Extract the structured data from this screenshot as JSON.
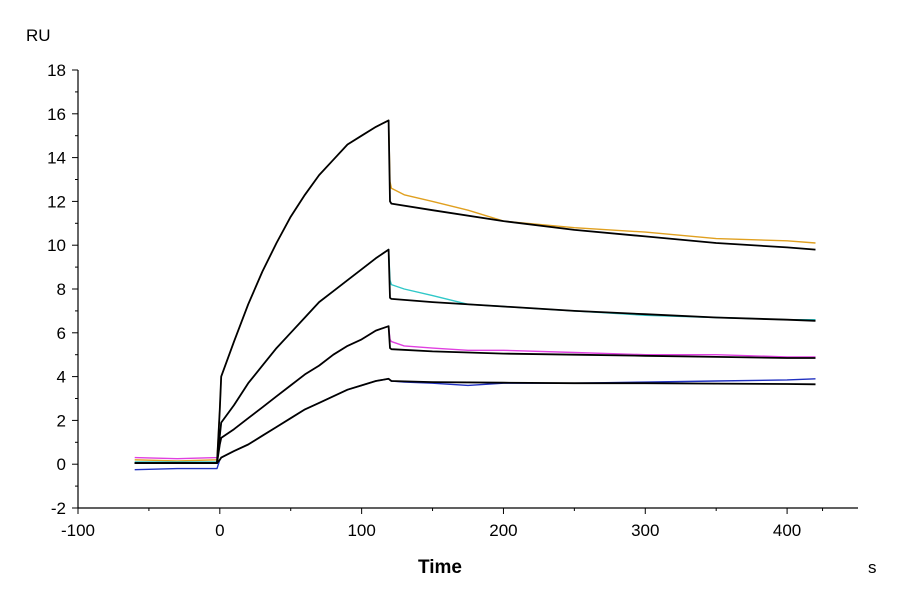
{
  "chart_data": {
    "type": "line",
    "title": "",
    "xlabel": "Time",
    "x_unit": "s",
    "ylabel": "RU",
    "xlim": [
      -100,
      450
    ],
    "ylim": [
      -2,
      18
    ],
    "x_ticks": [
      -100,
      0,
      100,
      200,
      300,
      400
    ],
    "y_ticks": [
      -2,
      0,
      2,
      4,
      6,
      8,
      10,
      12,
      14,
      16,
      18
    ],
    "grid": false,
    "legend": "none",
    "series": [
      {
        "color": "#E0A020",
        "style": "measured",
        "x": [
          -60,
          -30,
          -2,
          0,
          1,
          10,
          20,
          30,
          40,
          50,
          60,
          70,
          80,
          90,
          100,
          110,
          119,
          120,
          121,
          130,
          150,
          175,
          200,
          250,
          300,
          350,
          400,
          420
        ],
        "y": [
          0.2,
          0.15,
          0.2,
          2.5,
          4.0,
          5.6,
          7.3,
          8.8,
          10.1,
          11.3,
          12.3,
          13.2,
          13.9,
          14.6,
          15.0,
          15.4,
          15.7,
          12.9,
          12.6,
          12.3,
          12.0,
          11.6,
          11.1,
          10.8,
          10.6,
          10.3,
          10.2,
          10.1
        ]
      },
      {
        "color": "#30C8C8",
        "style": "measured",
        "x": [
          -60,
          -30,
          -2,
          0,
          1,
          10,
          20,
          30,
          40,
          50,
          60,
          70,
          80,
          90,
          100,
          110,
          119,
          120,
          121,
          130,
          150,
          175,
          200,
          250,
          300,
          350,
          400,
          420
        ],
        "y": [
          0.1,
          0.1,
          0.1,
          1.3,
          1.9,
          2.7,
          3.7,
          4.5,
          5.3,
          6.0,
          6.7,
          7.4,
          7.9,
          8.4,
          8.9,
          9.4,
          9.8,
          8.4,
          8.2,
          8.0,
          7.7,
          7.3,
          7.2,
          7.0,
          6.8,
          6.7,
          6.6,
          6.6
        ]
      },
      {
        "color": "#E040E0",
        "style": "measured",
        "x": [
          -60,
          -30,
          -2,
          0,
          1,
          10,
          20,
          30,
          40,
          50,
          60,
          70,
          80,
          90,
          100,
          110,
          119,
          120,
          121,
          130,
          150,
          175,
          200,
          250,
          300,
          350,
          400,
          420
        ],
        "y": [
          0.3,
          0.25,
          0.3,
          0.9,
          1.2,
          1.6,
          2.1,
          2.6,
          3.1,
          3.6,
          4.1,
          4.5,
          5.0,
          5.4,
          5.7,
          6.1,
          6.3,
          5.7,
          5.6,
          5.4,
          5.3,
          5.2,
          5.2,
          5.1,
          5.0,
          5.0,
          4.9,
          4.9
        ]
      },
      {
        "color": "#2030C0",
        "style": "measured",
        "x": [
          -60,
          -30,
          -2,
          0,
          1,
          10,
          20,
          30,
          40,
          50,
          60,
          70,
          80,
          90,
          100,
          110,
          119,
          120,
          121,
          130,
          150,
          175,
          200,
          250,
          300,
          350,
          400,
          420
        ],
        "y": [
          -0.25,
          -0.2,
          -0.2,
          0.2,
          0.3,
          0.6,
          0.9,
          1.3,
          1.7,
          2.1,
          2.5,
          2.8,
          3.1,
          3.4,
          3.6,
          3.8,
          3.9,
          3.85,
          3.8,
          3.75,
          3.7,
          3.6,
          3.7,
          3.7,
          3.75,
          3.8,
          3.85,
          3.9
        ]
      },
      {
        "color": "#000000",
        "style": "fit",
        "x": [
          -60,
          -2,
          0,
          1,
          10,
          20,
          30,
          40,
          50,
          60,
          70,
          80,
          90,
          100,
          110,
          119,
          120,
          121,
          150,
          200,
          250,
          300,
          350,
          400,
          420
        ],
        "y": [
          0.05,
          0.05,
          2.5,
          4.0,
          5.6,
          7.3,
          8.8,
          10.1,
          11.3,
          12.3,
          13.2,
          13.9,
          14.6,
          15.0,
          15.4,
          15.7,
          12.0,
          11.9,
          11.6,
          11.1,
          10.7,
          10.4,
          10.1,
          9.9,
          9.8
        ]
      },
      {
        "color": "#000000",
        "style": "fit",
        "x": [
          -60,
          -2,
          0,
          1,
          10,
          20,
          30,
          40,
          50,
          60,
          70,
          80,
          90,
          100,
          110,
          119,
          120,
          121,
          150,
          200,
          250,
          300,
          350,
          400,
          420
        ],
        "y": [
          0.05,
          0.05,
          1.3,
          1.9,
          2.7,
          3.7,
          4.5,
          5.3,
          6.0,
          6.7,
          7.4,
          7.9,
          8.4,
          8.9,
          9.4,
          9.8,
          7.6,
          7.55,
          7.4,
          7.2,
          7.0,
          6.85,
          6.7,
          6.6,
          6.55
        ]
      },
      {
        "color": "#000000",
        "style": "fit",
        "x": [
          -60,
          -2,
          0,
          1,
          10,
          20,
          30,
          40,
          50,
          60,
          70,
          80,
          90,
          100,
          110,
          119,
          120,
          121,
          150,
          200,
          250,
          300,
          350,
          400,
          420
        ],
        "y": [
          0.05,
          0.05,
          0.9,
          1.2,
          1.6,
          2.1,
          2.6,
          3.1,
          3.6,
          4.1,
          4.5,
          5.0,
          5.4,
          5.7,
          6.1,
          6.3,
          5.3,
          5.25,
          5.15,
          5.05,
          5.0,
          4.95,
          4.9,
          4.85,
          4.85
        ]
      },
      {
        "color": "#000000",
        "style": "fit",
        "x": [
          -60,
          -2,
          0,
          1,
          10,
          20,
          30,
          40,
          50,
          60,
          70,
          80,
          90,
          100,
          110,
          119,
          120,
          121,
          150,
          200,
          250,
          300,
          350,
          400,
          420
        ],
        "y": [
          0.05,
          0.05,
          0.2,
          0.3,
          0.6,
          0.9,
          1.3,
          1.7,
          2.1,
          2.5,
          2.8,
          3.1,
          3.4,
          3.6,
          3.8,
          3.9,
          3.85,
          3.8,
          3.75,
          3.72,
          3.7,
          3.7,
          3.68,
          3.66,
          3.65
        ]
      }
    ]
  }
}
